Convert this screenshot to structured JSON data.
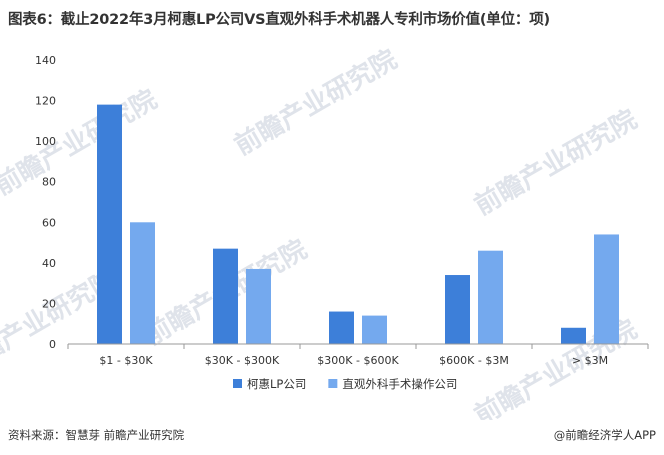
{
  "title": "图表6：截止2022年3月柯惠LP公司VS直观外科手术机器人专利市场价值(单位：项)",
  "source": "资料来源：智慧芽 前瞻产业研究院",
  "brand": "@前瞻经济学人APP",
  "watermark": "前瞻产业研究院",
  "colors": {
    "series1": "#3d7fd9",
    "series2": "#74a9ee",
    "axis": "#999999",
    "grid": "#f0f0f0"
  },
  "chart_data": {
    "type": "bar",
    "categories": [
      "$1 - $30K",
      "$30K - $300K",
      "$300K - $600K",
      "$600K - $3M",
      "> $3M"
    ],
    "series": [
      {
        "name": "柯惠LP公司",
        "values": [
          118,
          47,
          16,
          34,
          8
        ],
        "color": "#3d7fd9"
      },
      {
        "name": "直观外科手术操作公司",
        "values": [
          60,
          37,
          14,
          46,
          54
        ],
        "color": "#74a9ee"
      }
    ],
    "ylim": [
      0,
      140
    ],
    "yticks": [
      0,
      20,
      40,
      60,
      80,
      100,
      120,
      140
    ],
    "legend_position": "bottom-center",
    "grid": false
  }
}
